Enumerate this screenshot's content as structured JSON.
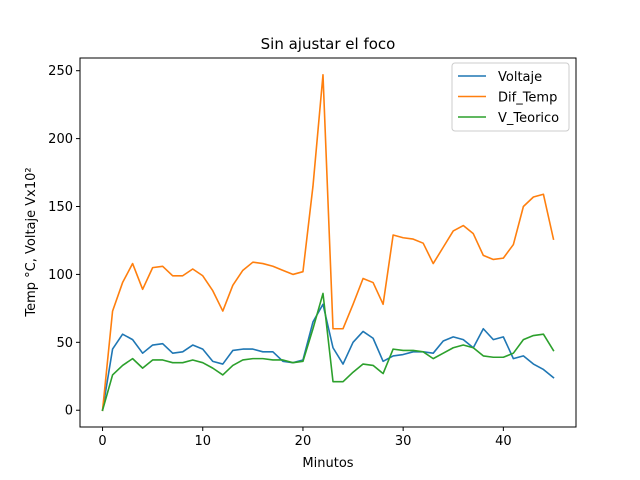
{
  "chart_data": {
    "type": "line",
    "title": "Sin ajustar el foco",
    "xlabel": "Minutos",
    "ylabel": "Temp °C, Voltaje Vx10²",
    "xlim": [
      -2.25,
      47.25
    ],
    "ylim": [
      -12.35,
      259.35
    ],
    "xticks": [
      0,
      10,
      20,
      30,
      40
    ],
    "yticks": [
      0,
      50,
      100,
      150,
      200,
      250
    ],
    "grid": false,
    "legend_position": "top-right",
    "x": [
      0,
      1,
      2,
      3,
      4,
      5,
      6,
      7,
      8,
      9,
      10,
      11,
      12,
      13,
      14,
      15,
      16,
      17,
      18,
      19,
      20,
      21,
      22,
      23,
      24,
      25,
      26,
      27,
      28,
      29,
      30,
      31,
      32,
      33,
      34,
      35,
      36,
      37,
      38,
      39,
      40,
      41,
      42,
      43,
      44,
      45
    ],
    "series": [
      {
        "name": "Voltaje",
        "color": "#1f77b4",
        "values": [
          0,
          45,
          56,
          52,
          42,
          48,
          49,
          42,
          43,
          48,
          45,
          36,
          34,
          44,
          45,
          45,
          43,
          43,
          36,
          35,
          37,
          65,
          78,
          46,
          34,
          50,
          58,
          53,
          36,
          40,
          41,
          43,
          43,
          42,
          51,
          54,
          52,
          46,
          60,
          52,
          54,
          38,
          40,
          34,
          30,
          24
        ]
      },
      {
        "name": "Dif_Temp",
        "color": "#ff7f0e",
        "values": [
          0,
          73,
          94,
          108,
          89,
          105,
          106,
          99,
          99,
          104,
          99,
          88,
          73,
          92,
          103,
          109,
          108,
          106,
          103,
          100,
          102,
          165,
          247,
          60,
          60,
          78,
          97,
          94,
          78,
          129,
          127,
          126,
          123,
          108,
          120,
          132,
          136,
          130,
          114,
          111,
          112,
          122,
          150,
          157,
          159,
          126
        ]
      },
      {
        "name": "V_Teorico",
        "color": "#2ca02c",
        "values": [
          0,
          26,
          33,
          38,
          31,
          37,
          37,
          35,
          35,
          37,
          35,
          31,
          26,
          33,
          37,
          38,
          38,
          37,
          37,
          35,
          36,
          60,
          86,
          21,
          21,
          28,
          34,
          33,
          27,
          45,
          44,
          44,
          43,
          38,
          42,
          46,
          48,
          46,
          40,
          39,
          39,
          42,
          52,
          55,
          56,
          44
        ]
      }
    ]
  }
}
